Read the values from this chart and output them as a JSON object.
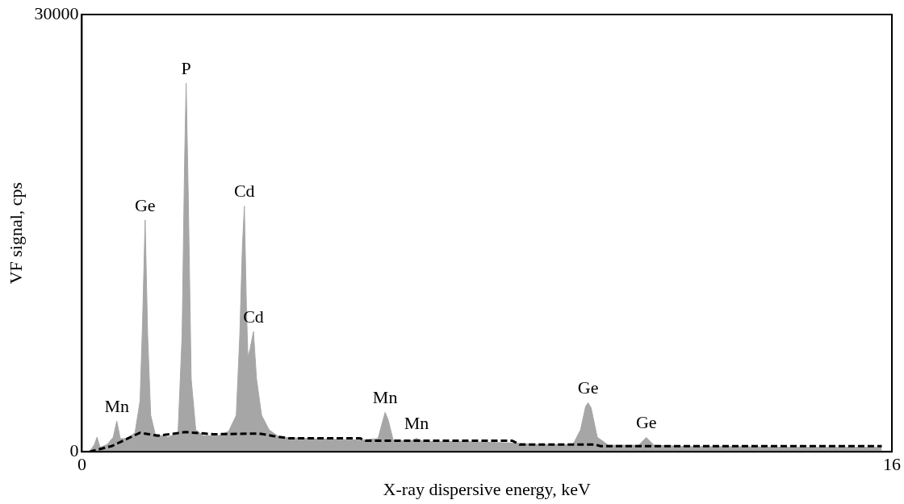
{
  "chart_data": {
    "type": "area",
    "xlabel": "X-ray dispersive energy, keV",
    "ylabel": "VF signal, cps",
    "xlim": [
      0,
      16
    ],
    "xticks": [
      0,
      16
    ],
    "ylim": [
      0,
      30000
    ],
    "yticks": [
      0,
      30000
    ],
    "marker": "none",
    "series": [
      {
        "color": "#a6a6a6",
        "x": [
          0.15,
          0.25,
          0.3,
          0.36,
          0.5,
          0.62,
          0.69,
          0.76,
          0.9,
          1.05,
          1.15,
          1.2,
          1.25,
          1.3,
          1.36,
          1.45,
          1.7,
          1.9,
          1.98,
          2.03,
          2.06,
          2.1,
          2.16,
          2.25,
          2.4,
          2.7,
          2.9,
          3.05,
          3.12,
          3.17,
          3.21,
          3.25,
          3.28,
          3.32,
          3.39,
          3.45,
          3.55,
          3.7,
          3.9,
          4.5,
          5.5,
          5.85,
          5.95,
          5.99,
          6.05,
          6.15,
          6.5,
          6.61,
          6.75,
          7.5,
          8.5,
          9.0,
          9.7,
          9.85,
          9.95,
          10.0,
          10.06,
          10.18,
          10.4,
          11.0,
          11.15,
          11.3,
          12,
          13,
          14,
          15,
          15.8
        ],
        "values": [
          0,
          500,
          1000,
          300,
          500,
          1000,
          2100,
          900,
          900,
          1300,
          3500,
          9000,
          15900,
          8000,
          2500,
          1200,
          1000,
          1300,
          8000,
          20000,
          25300,
          18000,
          5000,
          1500,
          1100,
          1100,
          1400,
          2500,
          8000,
          14000,
          16850,
          10000,
          6500,
          7000,
          8240,
          5000,
          2500,
          1500,
          1000,
          900,
          800,
          900,
          2200,
          2700,
          2200,
          800,
          750,
          920,
          700,
          700,
          600,
          500,
          500,
          1500,
          3100,
          3360,
          3000,
          1000,
          450,
          450,
          980,
          450,
          350,
          350,
          300,
          300,
          300
        ]
      },
      {
        "type": "line",
        "color": "#000000",
        "line_style": "dashed",
        "x": [
          0.15,
          0.6,
          0.9,
          1.15,
          1.5,
          2.05,
          2.6,
          3.5,
          3.78,
          4.1,
          5.5,
          5.6,
          8.5,
          8.65,
          10.15,
          10.25,
          15.8
        ],
        "values": [
          0,
          400,
          900,
          1300,
          1100,
          1350,
          1200,
          1250,
          1080,
          920,
          920,
          760,
          760,
          490,
          490,
          380,
          380
        ]
      }
    ],
    "annotations": [
      {
        "text": "Mn",
        "x": 0.69,
        "y": 2100
      },
      {
        "text": "Ge",
        "x": 1.25,
        "y": 15900
      },
      {
        "text": "P",
        "x": 2.06,
        "y": 25300
      },
      {
        "text": "Cd",
        "x": 3.21,
        "y": 16850
      },
      {
        "text": "Cd",
        "x": 3.39,
        "y": 8240
      },
      {
        "text": "Mn",
        "x": 5.99,
        "y": 2700
      },
      {
        "text": "Mn",
        "x": 6.61,
        "y": 920
      },
      {
        "text": "Ge",
        "x": 10.0,
        "y": 3360
      },
      {
        "text": "Ge",
        "x": 11.15,
        "y": 980
      }
    ]
  }
}
